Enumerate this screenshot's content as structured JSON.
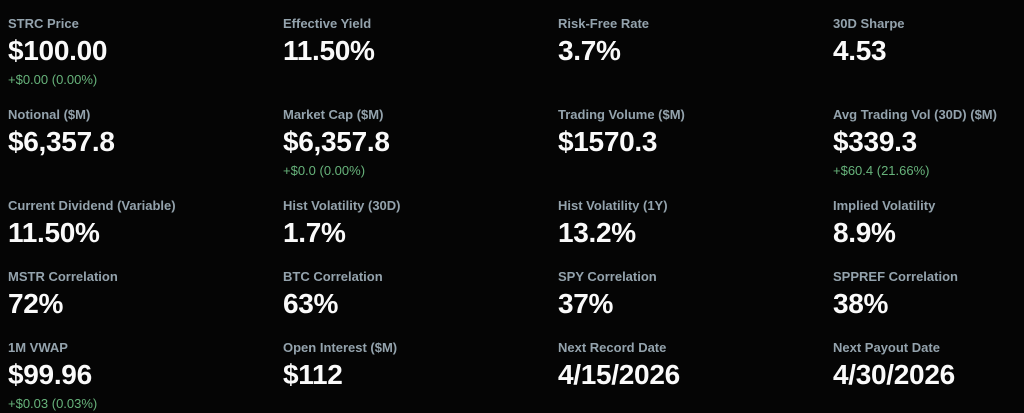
{
  "theme": {
    "bg": "#050505",
    "label_color": "#94a3ad",
    "value_color": "#fafafa",
    "positive_color": "#67b37b"
  },
  "metrics": [
    {
      "label": "STRC Price",
      "value": "$100.00",
      "delta": "+$0.00 (0.00%)"
    },
    {
      "label": "Effective Yield",
      "value": "11.50%"
    },
    {
      "label": "Risk-Free Rate",
      "value": "3.7%"
    },
    {
      "label": "30D Sharpe",
      "value": "4.53"
    },
    {
      "label": "Notional ($M)",
      "value": "$6,357.8"
    },
    {
      "label": "Market Cap ($M)",
      "value": "$6,357.8",
      "delta": "+$0.0 (0.00%)"
    },
    {
      "label": "Trading Volume ($M)",
      "value": "$1570.3"
    },
    {
      "label": "Avg Trading Vol (30D) ($M)",
      "value": "$339.3",
      "delta": "+$60.4 (21.66%)"
    },
    {
      "label": "Current Dividend (Variable)",
      "value": "11.50%"
    },
    {
      "label": "Hist Volatility (30D)",
      "value": "1.7%"
    },
    {
      "label": "Hist Volatility (1Y)",
      "value": "13.2%"
    },
    {
      "label": "Implied Volatility",
      "value": "8.9%"
    },
    {
      "label": "MSTR Correlation",
      "value": "72%"
    },
    {
      "label": "BTC Correlation",
      "value": "63%"
    },
    {
      "label": "SPY Correlation",
      "value": "37%"
    },
    {
      "label": "SPPREF Correlation",
      "value": "38%"
    },
    {
      "label": "1M VWAP",
      "value": "$99.96",
      "delta": "+$0.03 (0.03%)"
    },
    {
      "label": "Open Interest ($M)",
      "value": "$112"
    },
    {
      "label": "Next Record Date",
      "value": "4/15/2026"
    },
    {
      "label": "Next Payout Date",
      "value": "4/30/2026"
    }
  ]
}
